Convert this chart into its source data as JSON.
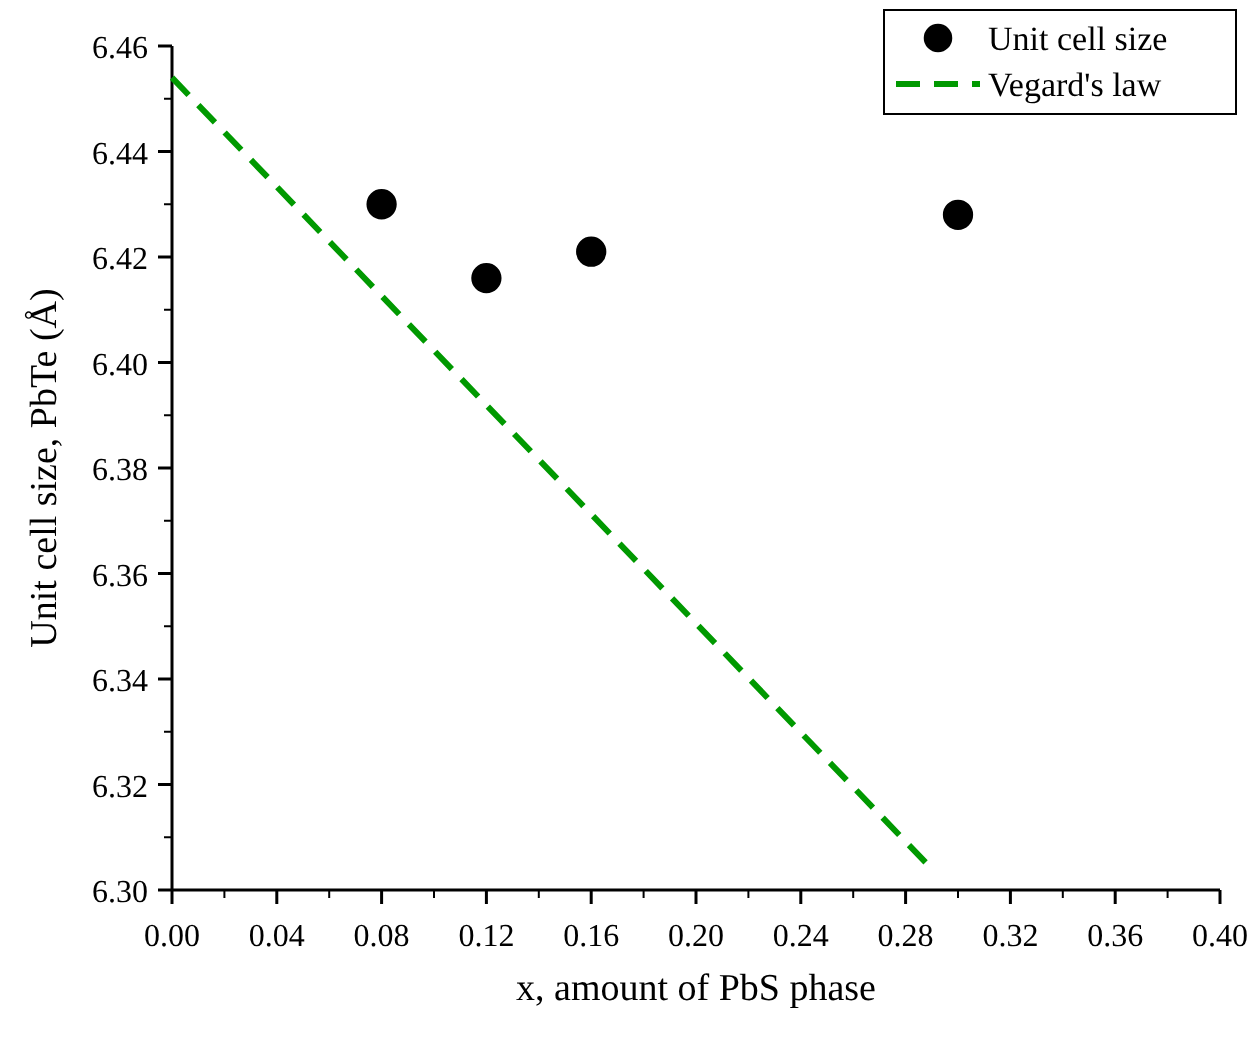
{
  "chart_data": {
    "type": "scatter",
    "xlabel": "x, amount of PbS phase",
    "ylabel": "Unit cell size, PbTe (Å)",
    "xlim": [
      0,
      0.4
    ],
    "xticks": [
      {
        "value": 0,
        "label": "0.00"
      },
      0.04,
      0.08,
      0.12,
      0.16,
      {
        "value": 0.2,
        "label": "0.20"
      },
      0.24,
      0.28,
      0.32,
      0.36,
      {
        "value": 0.4,
        "label": "0.40"
      }
    ],
    "ylim": [
      6.3,
      6.46
    ],
    "yticks": [
      {
        "value": 6.3,
        "label": "6.30"
      },
      6.32,
      6.34,
      6.36,
      6.38,
      {
        "value": 6.4,
        "label": "6.40"
      },
      6.42,
      6.44,
      6.46
    ],
    "legend": "top right",
    "grid": false,
    "series": [
      {
        "name": "Unit cell size",
        "color": "#000000",
        "marker": "circle",
        "x": [
          0.08,
          0.12,
          0.16,
          0.3
        ],
        "values": [
          6.43,
          6.416,
          6.421,
          6.428
        ]
      },
      {
        "name": "Vegard's law",
        "type": "line",
        "color": "#009900",
        "line_style": "dashed",
        "x": [
          0,
          0.29
        ],
        "values": [
          6.454,
          6.304
        ]
      }
    ]
  }
}
